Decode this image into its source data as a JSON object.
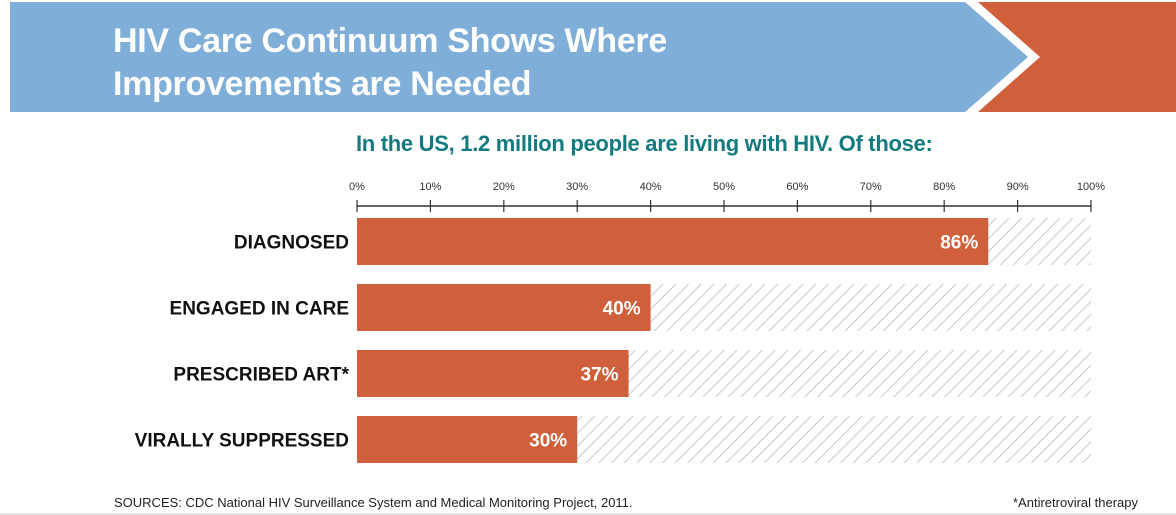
{
  "header": {
    "title_line1": "HIV Care Continuum Shows Where",
    "title_line2": "Improvements are Needed",
    "banner_color": "#7faed9",
    "accent_color": "#d0603c"
  },
  "chart_data": {
    "type": "bar",
    "orientation": "horizontal",
    "title": "In the US, 1.2 million people are living with HIV.  Of those:",
    "categories": [
      "DIAGNOSED",
      "ENGAGED IN CARE",
      "PRESCRIBED ART*",
      "VIRALLY SUPPRESSED"
    ],
    "values": [
      86,
      40,
      37,
      30
    ],
    "value_labels": [
      "86%",
      "40%",
      "37%",
      "30%"
    ],
    "unit": "%",
    "xlim": [
      0,
      100
    ],
    "x_ticks": [
      "0%",
      "10%",
      "20%",
      "30%",
      "40%",
      "50%",
      "60%",
      "70%",
      "80%",
      "90%",
      "100%"
    ],
    "bar_color": "#d0603c",
    "remainder_style": "hatched",
    "axis_position": "top",
    "grid": false,
    "legend": "none"
  },
  "footer": {
    "source": "SOURCES: CDC National HIV Surveillance System and Medical Monitoring Project, 2011.",
    "footnote": "*Antiretroviral therapy"
  }
}
